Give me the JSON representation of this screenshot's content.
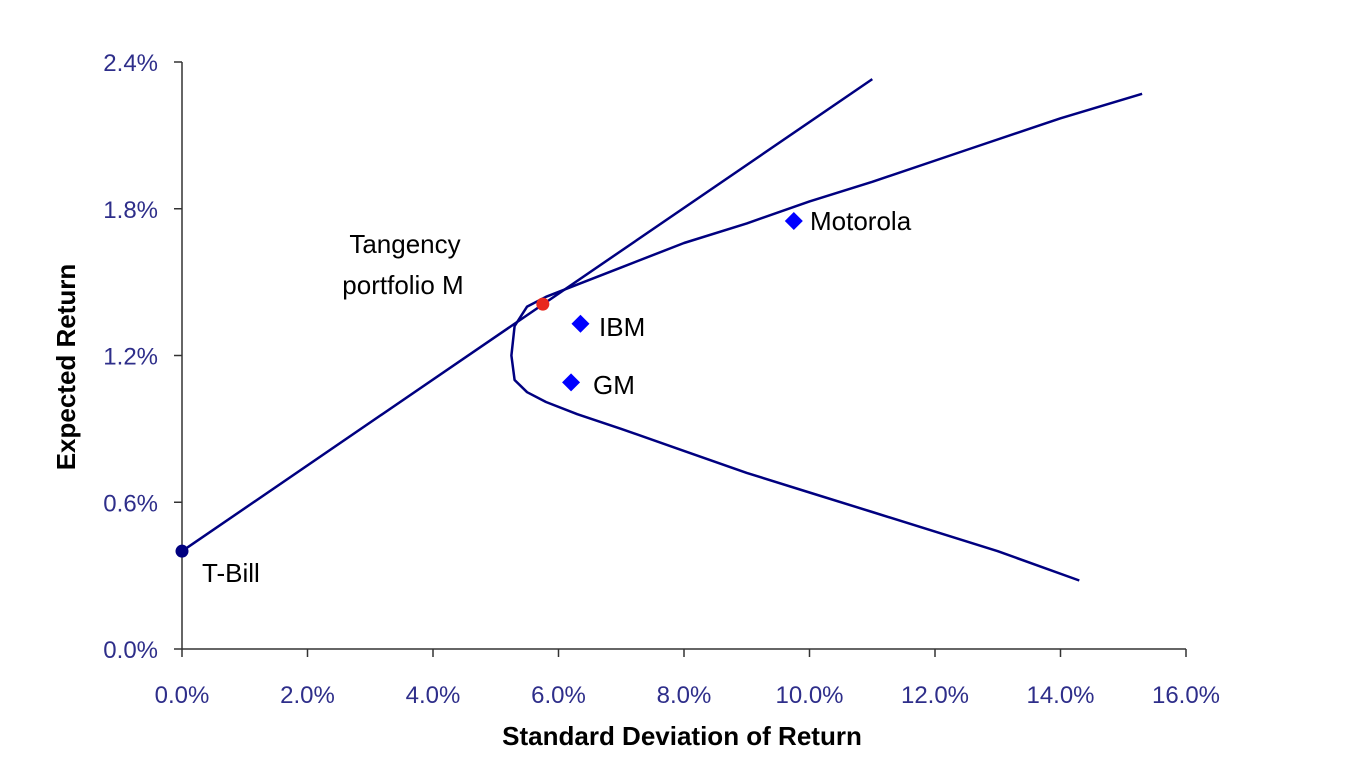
{
  "chart_data": {
    "type": "scatter",
    "title": "",
    "xlabel": "Standard Deviation of Return",
    "ylabel": "Expected Return",
    "xlim": [
      0,
      16
    ],
    "ylim": [
      0,
      2.4
    ],
    "x_ticks": [
      0,
      2,
      4,
      6,
      8,
      10,
      12,
      14,
      16
    ],
    "y_ticks": [
      0,
      0.6,
      1.2,
      1.8,
      2.4
    ],
    "x_tick_labels": [
      "0.0%",
      "2.0%",
      "4.0%",
      "6.0%",
      "8.0%",
      "10.0%",
      "12.0%",
      "14.0%",
      "16.0%"
    ],
    "y_tick_labels": [
      "0.0%",
      "0.6%",
      "1.2%",
      "1.8%",
      "2.4%"
    ],
    "grid": false,
    "legend": "none",
    "colors": {
      "axis": "#333333",
      "tick_text": "#2e2e8a",
      "curve": "#000080",
      "stock": "#0000ff",
      "tangency": "#e8281e",
      "tbill": "#000080"
    },
    "lines": [
      {
        "kind": "capital-market-line",
        "x": [
          0,
          11.0
        ],
        "y": [
          0.4,
          2.33
        ]
      },
      {
        "kind": "efficient-frontier",
        "x": [
          15.3,
          14.0,
          12.5,
          11.0,
          10.0,
          9.0,
          8.0,
          7.0,
          6.3,
          5.8,
          5.5,
          5.3,
          5.25,
          5.3,
          5.5,
          5.8,
          6.3,
          7.0,
          8.0,
          9.0,
          10.0,
          11.0,
          12.0,
          13.0,
          14.3
        ],
        "y": [
          2.27,
          2.17,
          2.04,
          1.91,
          1.83,
          1.74,
          1.66,
          1.56,
          1.49,
          1.44,
          1.4,
          1.32,
          1.2,
          1.1,
          1.05,
          1.01,
          0.96,
          0.9,
          0.81,
          0.72,
          0.64,
          0.56,
          0.48,
          0.4,
          0.28
        ]
      }
    ],
    "points": [
      {
        "name": "Motorola",
        "x": 9.75,
        "y": 1.75,
        "marker": "diamond"
      },
      {
        "name": "IBM",
        "x": 6.35,
        "y": 1.33,
        "marker": "diamond"
      },
      {
        "name": "GM",
        "x": 6.2,
        "y": 1.09,
        "marker": "diamond"
      },
      {
        "name": "T-Bill",
        "x": 0.0,
        "y": 0.4,
        "marker": "circle"
      },
      {
        "name": "Tangency portfolio M",
        "x": 5.75,
        "y": 1.41,
        "marker": "circle"
      }
    ],
    "annotations": {
      "tangency_line1": "Tangency",
      "tangency_line2": "portfolio M",
      "tbill": "T-Bill",
      "motorola": "Motorola",
      "ibm": "IBM",
      "gm": "GM"
    }
  }
}
